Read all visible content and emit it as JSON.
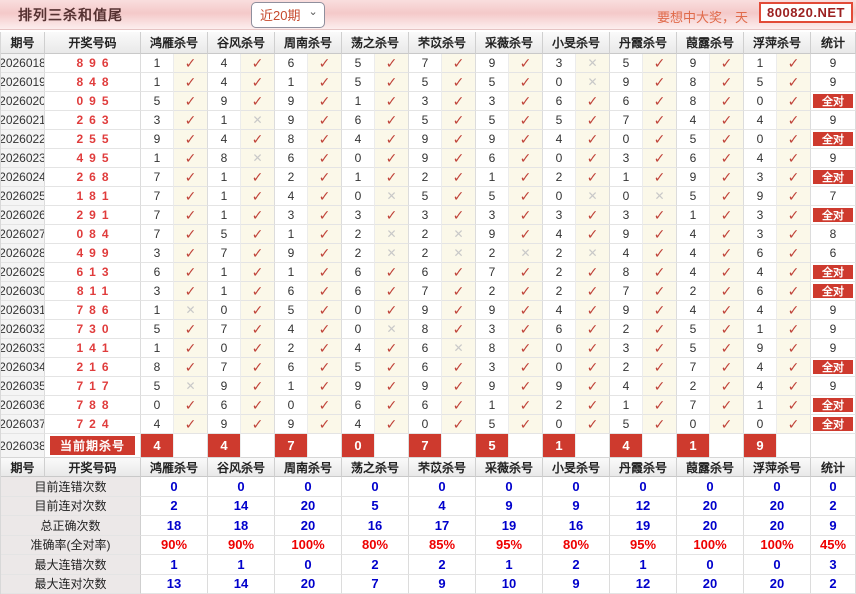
{
  "topbar": {
    "title": "排列三杀和值尾",
    "range_value": "近20期",
    "marquee": "要想中大奖，天",
    "badge": "800820.NET"
  },
  "labels": {
    "all_correct": "全对"
  },
  "icons": {
    "check": "✓",
    "cross": "✕",
    "chevron": "⌄"
  },
  "colors": {
    "accent_red": "#ce3a2e",
    "value_blue": "#0000cc",
    "value_red": "#ee0000",
    "check_red": "#c0443a",
    "cross_gray": "#c8c8c8"
  },
  "table": {
    "columns": {
      "period": "期号",
      "numbers": "开奖号码",
      "stat": "统计",
      "experts": [
        "鸿雁杀号",
        "谷风杀号",
        "周南杀号",
        "荡之杀号",
        "芣苡杀号",
        "采薇杀号",
        "小旻杀号",
        "丹霞杀号",
        "葭露杀号",
        "浮萍杀号"
      ]
    },
    "rows": [
      {
        "period": "2026018",
        "numbers": "896",
        "kills": [
          [
            "1",
            1
          ],
          [
            "4",
            1
          ],
          [
            "6",
            1
          ],
          [
            "5",
            1
          ],
          [
            "7",
            1
          ],
          [
            "9",
            1
          ],
          [
            "3",
            0
          ],
          [
            "5",
            1
          ],
          [
            "9",
            1
          ],
          [
            "1",
            1
          ]
        ],
        "stat": "9"
      },
      {
        "period": "2026019",
        "numbers": "848",
        "kills": [
          [
            "1",
            1
          ],
          [
            "4",
            1
          ],
          [
            "1",
            1
          ],
          [
            "5",
            1
          ],
          [
            "5",
            1
          ],
          [
            "5",
            1
          ],
          [
            "0",
            0
          ],
          [
            "9",
            1
          ],
          [
            "8",
            1
          ],
          [
            "5",
            1
          ]
        ],
        "stat": "9"
      },
      {
        "period": "2026020",
        "numbers": "095",
        "kills": [
          [
            "5",
            1
          ],
          [
            "9",
            1
          ],
          [
            "9",
            1
          ],
          [
            "1",
            1
          ],
          [
            "3",
            1
          ],
          [
            "3",
            1
          ],
          [
            "6",
            1
          ],
          [
            "6",
            1
          ],
          [
            "8",
            1
          ],
          [
            "0",
            1
          ]
        ],
        "stat": "全对"
      },
      {
        "period": "2026021",
        "numbers": "263",
        "kills": [
          [
            "3",
            1
          ],
          [
            "1",
            0
          ],
          [
            "9",
            1
          ],
          [
            "6",
            1
          ],
          [
            "5",
            1
          ],
          [
            "5",
            1
          ],
          [
            "5",
            1
          ],
          [
            "7",
            1
          ],
          [
            "4",
            1
          ],
          [
            "4",
            1
          ]
        ],
        "stat": "9"
      },
      {
        "period": "2026022",
        "numbers": "255",
        "kills": [
          [
            "9",
            1
          ],
          [
            "4",
            1
          ],
          [
            "8",
            1
          ],
          [
            "4",
            1
          ],
          [
            "9",
            1
          ],
          [
            "9",
            1
          ],
          [
            "4",
            1
          ],
          [
            "0",
            1
          ],
          [
            "5",
            1
          ],
          [
            "0",
            1
          ]
        ],
        "stat": "全对"
      },
      {
        "period": "2026023",
        "numbers": "495",
        "kills": [
          [
            "1",
            1
          ],
          [
            "8",
            0
          ],
          [
            "6",
            1
          ],
          [
            "0",
            1
          ],
          [
            "9",
            1
          ],
          [
            "6",
            1
          ],
          [
            "0",
            1
          ],
          [
            "3",
            1
          ],
          [
            "6",
            1
          ],
          [
            "4",
            1
          ]
        ],
        "stat": "9"
      },
      {
        "period": "2026024",
        "numbers": "268",
        "kills": [
          [
            "7",
            1
          ],
          [
            "1",
            1
          ],
          [
            "2",
            1
          ],
          [
            "1",
            1
          ],
          [
            "2",
            1
          ],
          [
            "1",
            1
          ],
          [
            "2",
            1
          ],
          [
            "1",
            1
          ],
          [
            "9",
            1
          ],
          [
            "3",
            1
          ]
        ],
        "stat": "全对"
      },
      {
        "period": "2026025",
        "numbers": "181",
        "kills": [
          [
            "7",
            1
          ],
          [
            "1",
            1
          ],
          [
            "4",
            1
          ],
          [
            "0",
            0
          ],
          [
            "5",
            1
          ],
          [
            "5",
            1
          ],
          [
            "0",
            0
          ],
          [
            "0",
            0
          ],
          [
            "5",
            1
          ],
          [
            "9",
            1
          ]
        ],
        "stat": "7"
      },
      {
        "period": "2026026",
        "numbers": "291",
        "kills": [
          [
            "7",
            1
          ],
          [
            "1",
            1
          ],
          [
            "3",
            1
          ],
          [
            "3",
            1
          ],
          [
            "3",
            1
          ],
          [
            "3",
            1
          ],
          [
            "3",
            1
          ],
          [
            "3",
            1
          ],
          [
            "1",
            1
          ],
          [
            "3",
            1
          ]
        ],
        "stat": "全对"
      },
      {
        "period": "2026027",
        "numbers": "084",
        "kills": [
          [
            "7",
            1
          ],
          [
            "5",
            1
          ],
          [
            "1",
            1
          ],
          [
            "2",
            0
          ],
          [
            "2",
            0
          ],
          [
            "9",
            1
          ],
          [
            "4",
            1
          ],
          [
            "9",
            1
          ],
          [
            "4",
            1
          ],
          [
            "3",
            1
          ]
        ],
        "stat": "8"
      },
      {
        "period": "2026028",
        "numbers": "499",
        "kills": [
          [
            "3",
            1
          ],
          [
            "7",
            1
          ],
          [
            "9",
            1
          ],
          [
            "2",
            0
          ],
          [
            "2",
            0
          ],
          [
            "2",
            0
          ],
          [
            "2",
            0
          ],
          [
            "4",
            1
          ],
          [
            "4",
            1
          ],
          [
            "6",
            1
          ]
        ],
        "stat": "6"
      },
      {
        "period": "2026029",
        "numbers": "613",
        "kills": [
          [
            "6",
            1
          ],
          [
            "1",
            1
          ],
          [
            "1",
            1
          ],
          [
            "6",
            1
          ],
          [
            "6",
            1
          ],
          [
            "7",
            1
          ],
          [
            "2",
            1
          ],
          [
            "8",
            1
          ],
          [
            "4",
            1
          ],
          [
            "4",
            1
          ]
        ],
        "stat": "全对"
      },
      {
        "period": "2026030",
        "numbers": "811",
        "kills": [
          [
            "3",
            1
          ],
          [
            "1",
            1
          ],
          [
            "6",
            1
          ],
          [
            "6",
            1
          ],
          [
            "7",
            1
          ],
          [
            "2",
            1
          ],
          [
            "2",
            1
          ],
          [
            "7",
            1
          ],
          [
            "2",
            1
          ],
          [
            "6",
            1
          ]
        ],
        "stat": "全对"
      },
      {
        "period": "2026031",
        "numbers": "786",
        "kills": [
          [
            "1",
            0
          ],
          [
            "0",
            1
          ],
          [
            "5",
            1
          ],
          [
            "0",
            1
          ],
          [
            "9",
            1
          ],
          [
            "9",
            1
          ],
          [
            "4",
            1
          ],
          [
            "9",
            1
          ],
          [
            "4",
            1
          ],
          [
            "4",
            1
          ]
        ],
        "stat": "9"
      },
      {
        "period": "2026032",
        "numbers": "730",
        "kills": [
          [
            "5",
            1
          ],
          [
            "7",
            1
          ],
          [
            "4",
            1
          ],
          [
            "0",
            0
          ],
          [
            "8",
            1
          ],
          [
            "3",
            1
          ],
          [
            "6",
            1
          ],
          [
            "2",
            1
          ],
          [
            "5",
            1
          ],
          [
            "1",
            1
          ]
        ],
        "stat": "9"
      },
      {
        "period": "2026033",
        "numbers": "141",
        "kills": [
          [
            "1",
            1
          ],
          [
            "0",
            1
          ],
          [
            "2",
            1
          ],
          [
            "4",
            1
          ],
          [
            "6",
            0
          ],
          [
            "8",
            1
          ],
          [
            "0",
            1
          ],
          [
            "3",
            1
          ],
          [
            "5",
            1
          ],
          [
            "9",
            1
          ]
        ],
        "stat": "9"
      },
      {
        "period": "2026034",
        "numbers": "216",
        "kills": [
          [
            "8",
            1
          ],
          [
            "7",
            1
          ],
          [
            "6",
            1
          ],
          [
            "5",
            1
          ],
          [
            "6",
            1
          ],
          [
            "3",
            1
          ],
          [
            "0",
            1
          ],
          [
            "2",
            1
          ],
          [
            "7",
            1
          ],
          [
            "4",
            1
          ]
        ],
        "stat": "全对"
      },
      {
        "period": "2026035",
        "numbers": "717",
        "kills": [
          [
            "5",
            0
          ],
          [
            "9",
            1
          ],
          [
            "1",
            1
          ],
          [
            "9",
            1
          ],
          [
            "9",
            1
          ],
          [
            "9",
            1
          ],
          [
            "9",
            1
          ],
          [
            "4",
            1
          ],
          [
            "2",
            1
          ],
          [
            "4",
            1
          ]
        ],
        "stat": "9"
      },
      {
        "period": "2026036",
        "numbers": "788",
        "kills": [
          [
            "0",
            1
          ],
          [
            "6",
            1
          ],
          [
            "0",
            1
          ],
          [
            "6",
            1
          ],
          [
            "6",
            1
          ],
          [
            "1",
            1
          ],
          [
            "2",
            1
          ],
          [
            "1",
            1
          ],
          [
            "7",
            1
          ],
          [
            "1",
            1
          ]
        ],
        "stat": "全对"
      },
      {
        "period": "2026037",
        "numbers": "724",
        "kills": [
          [
            "4",
            1
          ],
          [
            "9",
            1
          ],
          [
            "9",
            1
          ],
          [
            "4",
            1
          ],
          [
            "0",
            1
          ],
          [
            "5",
            1
          ],
          [
            "0",
            1
          ],
          [
            "5",
            1
          ],
          [
            "0",
            1
          ],
          [
            "0",
            1
          ]
        ],
        "stat": "全对"
      }
    ],
    "current": {
      "period": "2026038",
      "label": "当前期杀号",
      "kills": [
        "4",
        "4",
        "7",
        "0",
        "7",
        "5",
        "1",
        "4",
        "1",
        "9"
      ],
      "stat": ""
    }
  },
  "summary": {
    "rows": [
      {
        "label": "目前连错次数",
        "values": [
          "0",
          "0",
          "0",
          "0",
          "0",
          "0",
          "0",
          "0",
          "0",
          "0"
        ],
        "stat": "0",
        "color": "blue"
      },
      {
        "label": "目前连对次数",
        "values": [
          "2",
          "14",
          "20",
          "5",
          "4",
          "9",
          "9",
          "12",
          "20",
          "20"
        ],
        "stat": "2",
        "color": "blue"
      },
      {
        "label": "总正确次数",
        "values": [
          "18",
          "18",
          "20",
          "16",
          "17",
          "19",
          "16",
          "19",
          "20",
          "20"
        ],
        "stat": "9",
        "color": "blue"
      },
      {
        "label": "准确率(全对率)",
        "values": [
          "90%",
          "90%",
          "100%",
          "80%",
          "85%",
          "95%",
          "80%",
          "95%",
          "100%",
          "100%"
        ],
        "stat": "45%",
        "color": "red"
      },
      {
        "label": "最大连错次数",
        "values": [
          "1",
          "1",
          "0",
          "2",
          "2",
          "1",
          "2",
          "1",
          "0",
          "0"
        ],
        "stat": "3",
        "color": "blue"
      },
      {
        "label": "最大连对次数",
        "values": [
          "13",
          "14",
          "20",
          "7",
          "9",
          "10",
          "9",
          "12",
          "20",
          "20"
        ],
        "stat": "2",
        "color": "blue"
      }
    ]
  }
}
